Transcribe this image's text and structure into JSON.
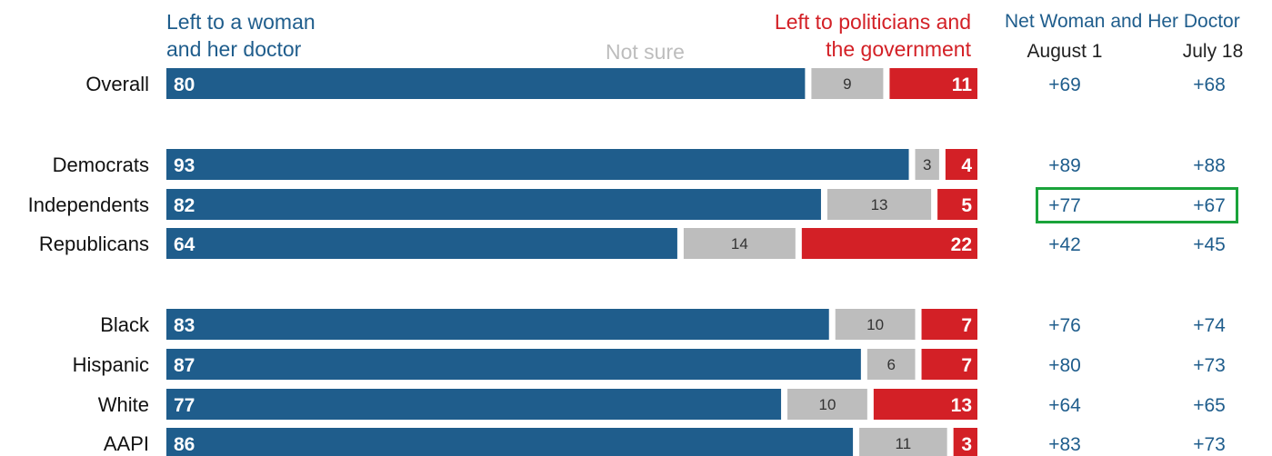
{
  "headers": {
    "left_line1": "Left to a woman",
    "left_line2": "and her doctor",
    "not_sure": "Not sure",
    "right_line1": "Left to politicians and",
    "right_line2": "the government",
    "net_title": "Net Woman and Her Doctor",
    "col1": "August 1",
    "col2": "July 18"
  },
  "colors": {
    "woman": "#1f5d8c",
    "not_sure": "#bdbdbd",
    "government": "#d32026",
    "highlight": "#1aa33a"
  },
  "chart_data": {
    "type": "bar",
    "stacked": true,
    "orientation": "horizontal",
    "categories": [
      "Overall",
      "Democrats",
      "Independents",
      "Republicans",
      "Black",
      "Hispanic",
      "White",
      "AAPI"
    ],
    "series": [
      {
        "name": "Left to a woman and her doctor",
        "values": [
          80,
          93,
          82,
          64,
          83,
          87,
          77,
          86
        ]
      },
      {
        "name": "Not sure",
        "values": [
          9,
          3,
          13,
          14,
          10,
          6,
          10,
          11
        ]
      },
      {
        "name": "Left to politicians and the government",
        "values": [
          11,
          4,
          5,
          22,
          7,
          7,
          13,
          3
        ]
      }
    ],
    "net": {
      "columns": [
        "August 1",
        "July 18"
      ],
      "august_1": [
        "+69",
        "+89",
        "+77",
        "+42",
        "+76",
        "+80",
        "+64",
        "+83"
      ],
      "july_18": [
        "+68",
        "+88",
        "+67",
        "+45",
        "+74",
        "+73",
        "+65",
        "+73"
      ]
    },
    "highlighted_row": "Independents",
    "xlim": [
      0,
      100
    ]
  }
}
